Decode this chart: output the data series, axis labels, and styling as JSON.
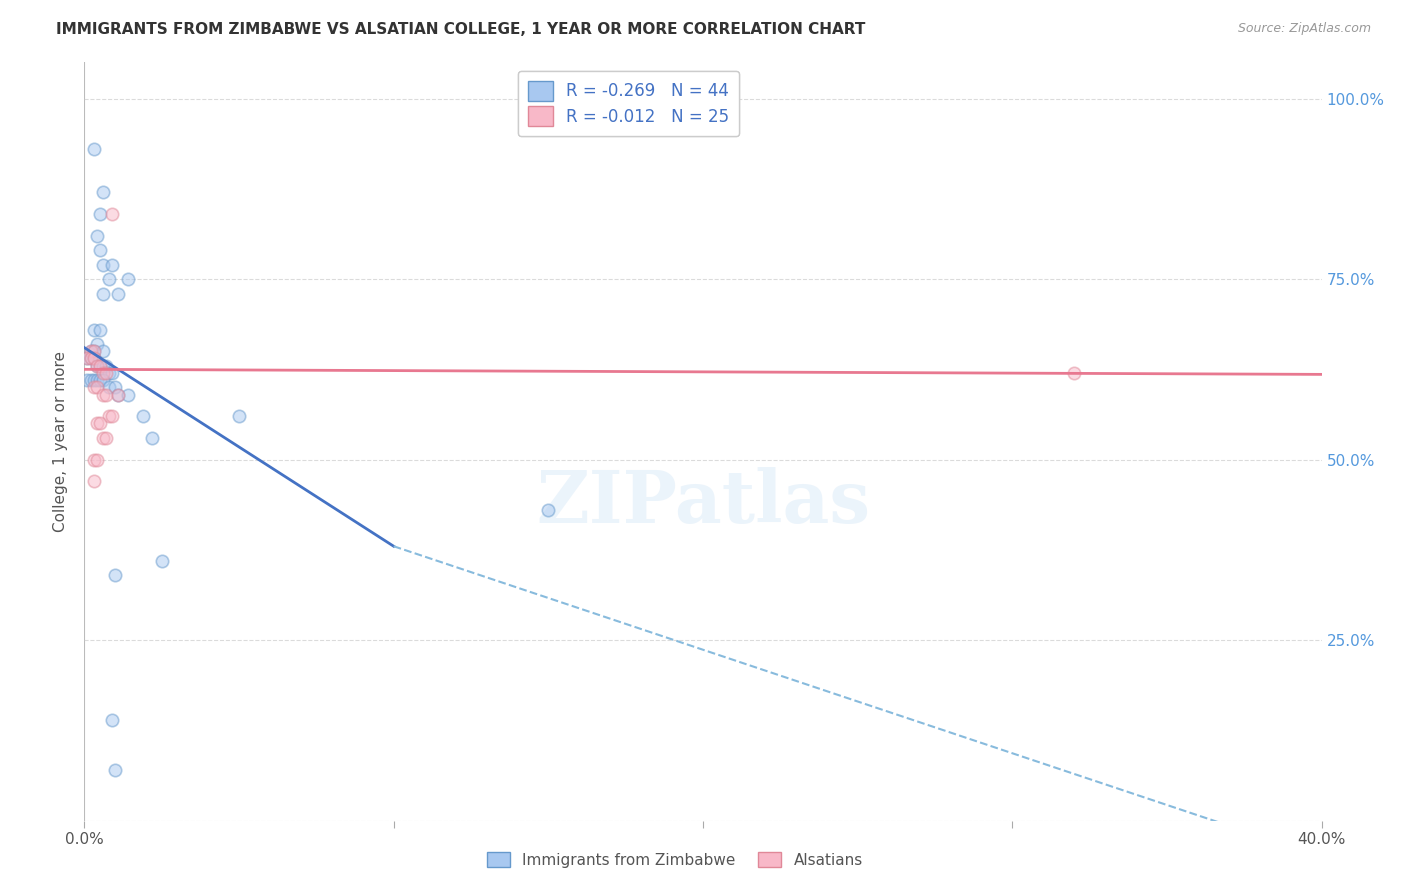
{
  "title": "IMMIGRANTS FROM ZIMBABWE VS ALSATIAN COLLEGE, 1 YEAR OR MORE CORRELATION CHART",
  "source": "Source: ZipAtlas.com",
  "ylabel": "College, 1 year or more",
  "xlim": [
    0.0,
    0.4
  ],
  "ylim": [
    0.0,
    1.05
  ],
  "x_ticks": [
    0.0,
    0.1,
    0.2,
    0.3,
    0.4
  ],
  "x_tick_labels": [
    "0.0%",
    "",
    "",
    "",
    "40.0%"
  ],
  "y_ticks_right": [
    0.0,
    0.25,
    0.5,
    0.75,
    1.0
  ],
  "y_tick_labels_right": [
    "",
    "25.0%",
    "50.0%",
    "75.0%",
    "100.0%"
  ],
  "blue_dots": [
    [
      0.003,
      0.93
    ],
    [
      0.006,
      0.87
    ],
    [
      0.005,
      0.84
    ],
    [
      0.004,
      0.81
    ],
    [
      0.005,
      0.79
    ],
    [
      0.006,
      0.77
    ],
    [
      0.009,
      0.77
    ],
    [
      0.008,
      0.75
    ],
    [
      0.006,
      0.73
    ],
    [
      0.011,
      0.73
    ],
    [
      0.014,
      0.75
    ],
    [
      0.003,
      0.68
    ],
    [
      0.005,
      0.68
    ],
    [
      0.004,
      0.66
    ],
    [
      0.002,
      0.65
    ],
    [
      0.003,
      0.65
    ],
    [
      0.006,
      0.65
    ],
    [
      0.001,
      0.64
    ],
    [
      0.002,
      0.64
    ],
    [
      0.003,
      0.64
    ],
    [
      0.004,
      0.63
    ],
    [
      0.005,
      0.63
    ],
    [
      0.006,
      0.63
    ],
    [
      0.007,
      0.63
    ],
    [
      0.008,
      0.62
    ],
    [
      0.009,
      0.62
    ],
    [
      0.001,
      0.61
    ],
    [
      0.002,
      0.61
    ],
    [
      0.003,
      0.61
    ],
    [
      0.004,
      0.61
    ],
    [
      0.005,
      0.61
    ],
    [
      0.006,
      0.61
    ],
    [
      0.008,
      0.6
    ],
    [
      0.01,
      0.6
    ],
    [
      0.011,
      0.59
    ],
    [
      0.014,
      0.59
    ],
    [
      0.019,
      0.56
    ],
    [
      0.05,
      0.56
    ],
    [
      0.022,
      0.53
    ],
    [
      0.15,
      0.43
    ],
    [
      0.025,
      0.36
    ],
    [
      0.01,
      0.34
    ],
    [
      0.009,
      0.14
    ],
    [
      0.01,
      0.07
    ]
  ],
  "pink_dots": [
    [
      0.009,
      0.84
    ],
    [
      0.002,
      0.65
    ],
    [
      0.003,
      0.65
    ],
    [
      0.001,
      0.64
    ],
    [
      0.002,
      0.64
    ],
    [
      0.003,
      0.64
    ],
    [
      0.004,
      0.63
    ],
    [
      0.005,
      0.63
    ],
    [
      0.006,
      0.62
    ],
    [
      0.007,
      0.62
    ],
    [
      0.003,
      0.6
    ],
    [
      0.004,
      0.6
    ],
    [
      0.006,
      0.59
    ],
    [
      0.007,
      0.59
    ],
    [
      0.011,
      0.59
    ],
    [
      0.008,
      0.56
    ],
    [
      0.009,
      0.56
    ],
    [
      0.004,
      0.55
    ],
    [
      0.005,
      0.55
    ],
    [
      0.006,
      0.53
    ],
    [
      0.007,
      0.53
    ],
    [
      0.003,
      0.5
    ],
    [
      0.004,
      0.5
    ],
    [
      0.003,
      0.47
    ],
    [
      0.32,
      0.62
    ]
  ],
  "blue_line_solid": {
    "x": [
      0.0,
      0.1
    ],
    "y": [
      0.655,
      0.38
    ]
  },
  "blue_line_dashed": {
    "x": [
      0.1,
      0.4
    ],
    "y": [
      0.38,
      -0.05
    ]
  },
  "pink_line": {
    "x": [
      0.0,
      0.4
    ],
    "y": [
      0.625,
      0.618
    ]
  },
  "watermark": "ZIPatlas",
  "background_color": "#ffffff",
  "dot_size": 80,
  "dot_alpha": 0.5,
  "dot_edgewidth": 1.2,
  "blue_dot_color": "#a8c8f0",
  "blue_dot_edge": "#6699cc",
  "pink_dot_color": "#f8b8c8",
  "pink_dot_edge": "#e08898",
  "blue_line_color": "#4472c4",
  "blue_dash_color": "#88bbdd",
  "pink_line_color": "#e87890",
  "grid_color": "#cccccc",
  "grid_style": "--",
  "grid_alpha": 0.7
}
